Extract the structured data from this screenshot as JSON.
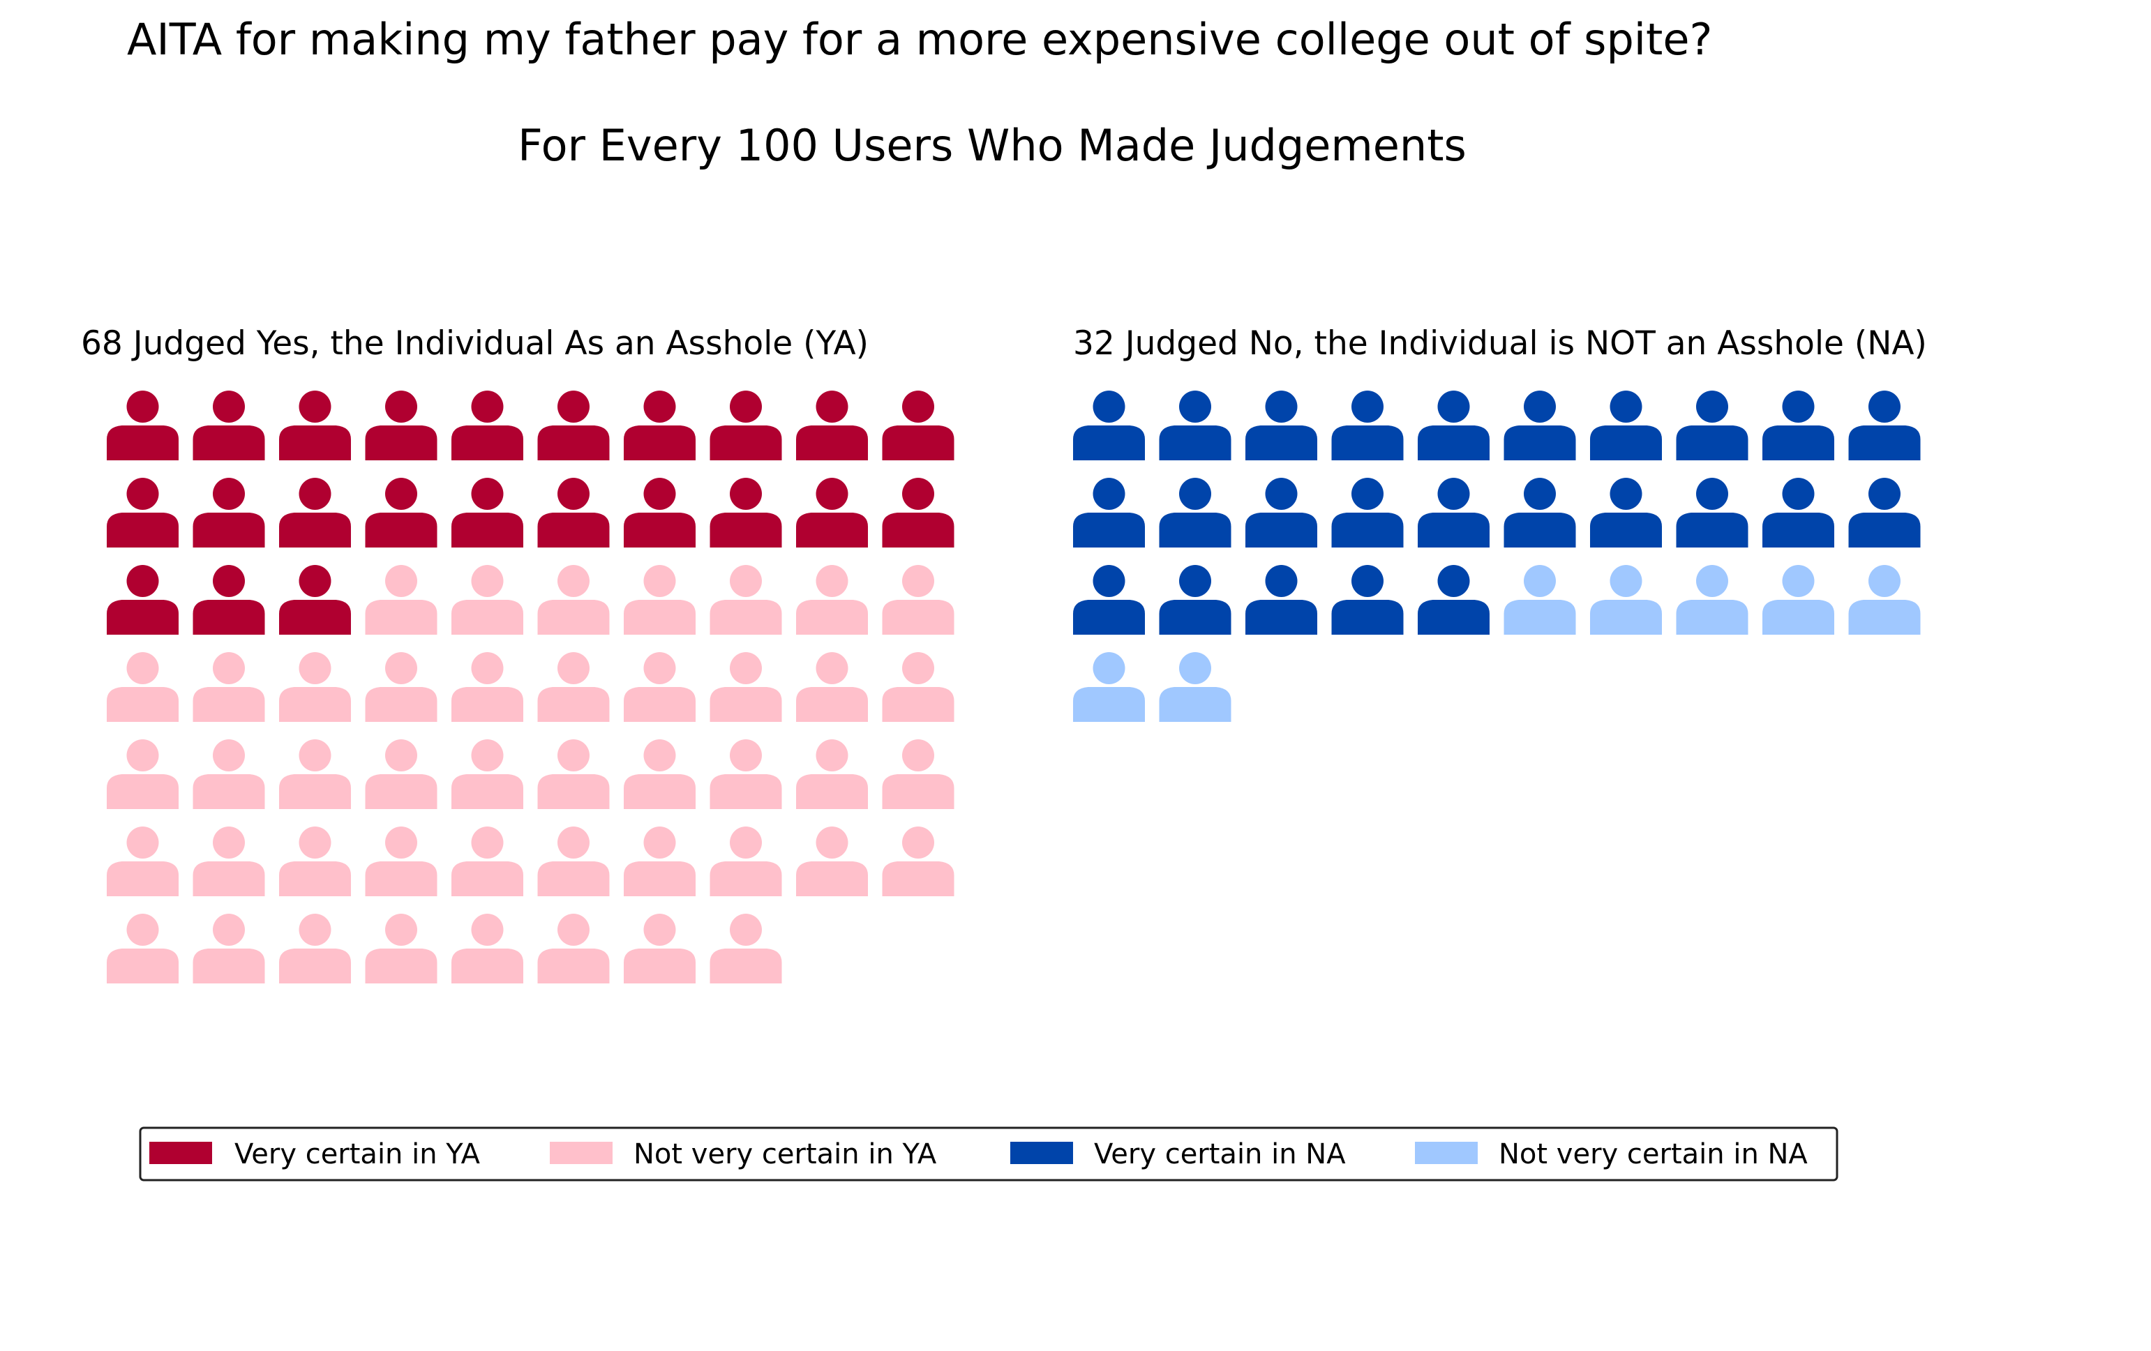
{
  "chart_data": {
    "type": "waffle-pictogram",
    "title": "AITA for making my father pay for a more expensive college out of spite?",
    "subtitle": "For Every 100 Users Who Made Judgements",
    "groups": [
      {
        "id": "ya",
        "label": "68 Judged Yes, the Individual As an Asshole (YA)",
        "total": 68,
        "columns": 10,
        "segments": [
          {
            "name": "Very certain in YA",
            "count": 23,
            "color": "#b00030"
          },
          {
            "name": "Not very certain in YA",
            "count": 45,
            "color": "#ffc0cb"
          }
        ]
      },
      {
        "id": "na",
        "label": "32 Judged No, the Individual is NOT an Asshole (NA)",
        "total": 32,
        "columns": 10,
        "segments": [
          {
            "name": "Very certain in NA",
            "count": 25,
            "color": "#0044aa"
          },
          {
            "name": "Not very certain in NA",
            "count": 7,
            "color": "#a0c8ff"
          }
        ]
      }
    ],
    "legend": {
      "placement": "bottom",
      "entries": [
        {
          "label": "Very certain in YA",
          "color": "#b00030"
        },
        {
          "label": "Not very certain in YA",
          "color": "#ffc0cb"
        },
        {
          "label": "Very certain in NA",
          "color": "#0044aa"
        },
        {
          "label": "Not very certain in NA",
          "color": "#a0c8ff"
        }
      ]
    },
    "icon": "person-icon"
  }
}
